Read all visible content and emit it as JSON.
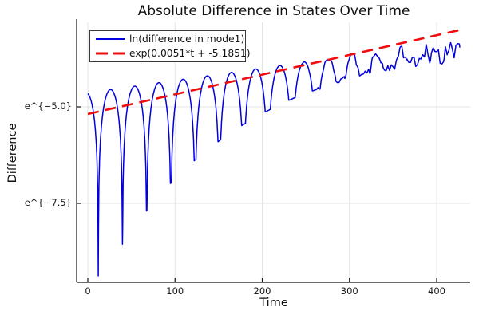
{
  "figure": {
    "background": "#ffffff",
    "grid_color": "#e4e4e4",
    "axis_color": "#151515",
    "text_color": "#111111"
  },
  "chart_data": {
    "type": "line",
    "title": "Absolute Difference in States Over Time",
    "xlabel": "Time",
    "ylabel": "Difference",
    "y_scale": "natural-log (labels shown as e^{v})",
    "xlim": [
      -13,
      439
    ],
    "ylim_log": [
      -9.55,
      -2.85
    ],
    "xticks": [
      0,
      100,
      200,
      300,
      400
    ],
    "yticks": [
      {
        "value": -5.0,
        "label": "e^{−5.0}"
      },
      {
        "value": -7.5,
        "label": "e^{−7.5}"
      }
    ],
    "grid": true,
    "legend_position": "top-left",
    "series": [
      {
        "name": "ln(difference in mode1)",
        "color": "#0000e0",
        "style": "solid",
        "width": 1.5,
        "description": "Oscillating arches whose peaks track the exponential fit; sharp downward spikes at zero crossings roughly every 27.75 time units (deep early: ln≈-9.4, -8.6, -8.8, shallowing to ≈-6 by t≈120); curve grows noisy/jagged after t≈240 and hovers around the fit line near t=400-430.",
        "model": {
          "kind": "log-abs-oscillation",
          "slope": 0.0051,
          "intercept": -5.1851,
          "peak_offset0": 0.55,
          "peak_offset_slope": -0.0019,
          "period": 27.75,
          "zero_phase_t": 12,
          "floor_depth": 5.5,
          "floor_tau": 130,
          "clamp_min": -9.38,
          "noise_start": 240,
          "noise_end": 430,
          "noise_max": 0.5,
          "noise_seed": 7,
          "t_start": 0,
          "t_end": 426.5,
          "dt": 0.25
        }
      },
      {
        "name": "exp(0.0051*t + -5.1851)",
        "color": "#ee0e0e",
        "style": "dashed",
        "width": 2.6,
        "dash": "14 8",
        "model": {
          "kind": "exponential-fit",
          "slope": 0.0051,
          "intercept": -5.1851,
          "t_start": 0,
          "t_end": 430
        }
      }
    ]
  }
}
